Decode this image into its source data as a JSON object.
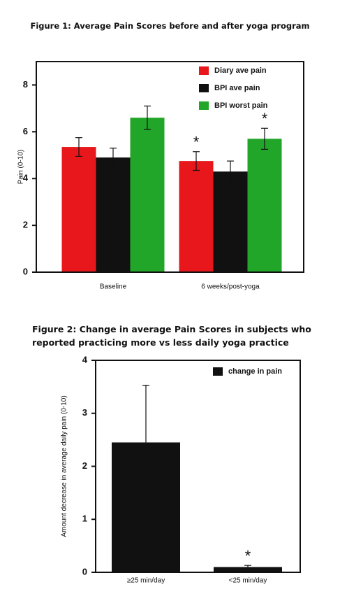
{
  "chart_data": [
    {
      "type": "bar",
      "title": "Figure 1: Average Pain Scores before and after yoga program",
      "y_label": "Pain (0-10)",
      "categories": [
        "Baseline",
        "6 weeks/post-yoga"
      ],
      "series": [
        {
          "name": "Diary ave pain",
          "color": "#e8171b",
          "values": [
            5.35,
            4.75
          ],
          "errors": [
            0.4,
            0.4
          ]
        },
        {
          "name": "BPI ave pain",
          "color": "#111111",
          "values": [
            4.9,
            4.3
          ],
          "errors": [
            0.4,
            0.45
          ]
        },
        {
          "name": "BPI worst pain",
          "color": "#22a62a",
          "values": [
            6.6,
            5.7
          ],
          "errors": [
            0.5,
            0.45
          ]
        }
      ],
      "error_bars": "both",
      "annotations": [
        {
          "text": "*",
          "series": "Diary ave pain",
          "category": "6 weeks/post-yoga"
        },
        {
          "text": "*",
          "series": "BPI worst pain",
          "category": "6 weeks/post-yoga"
        }
      ],
      "ylim": [
        0,
        9
      ],
      "yticks": [
        0,
        2,
        4,
        6,
        8
      ],
      "legend": "upper right"
    },
    {
      "type": "bar",
      "title": "Figure 2: Change in average Pain Scores in subjects who reported practicing more vs less daily yoga practice",
      "y_label": "Amount decrease in average daily pain (0-10)",
      "categories": [
        "≥25 min/day",
        "<25 min/day"
      ],
      "series": [
        {
          "name": "change in pain",
          "color": "#111111",
          "values": [
            2.45,
            0.1
          ],
          "errors": [
            1.08,
            0.03
          ]
        }
      ],
      "error_bars": "upper",
      "annotations": [
        {
          "text": "*",
          "series": "change in pain",
          "category": "<25 min/day"
        }
      ],
      "ylim": [
        0,
        4
      ],
      "yticks": [
        0,
        1,
        2,
        3,
        4
      ],
      "legend": "upper right"
    }
  ]
}
